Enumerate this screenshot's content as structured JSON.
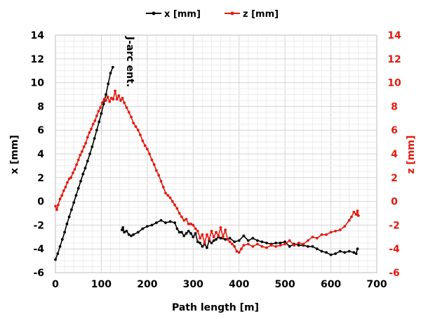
{
  "chart_data": {
    "type": "line",
    "xlabel": "Path length [m]",
    "ylabel": "x [mm]",
    "y2label": "z [mm]",
    "xlim": [
      0,
      700
    ],
    "ylim": [
      -6,
      14
    ],
    "y2lim": [
      -6,
      14
    ],
    "xticks": [
      0,
      100,
      200,
      300,
      400,
      500,
      600,
      700
    ],
    "yticks": [
      -6,
      -4,
      -2,
      0,
      2,
      4,
      6,
      8,
      10,
      12,
      14
    ],
    "y2ticks": [
      -6,
      -4,
      -2,
      0,
      2,
      4,
      6,
      8,
      10,
      12,
      14
    ],
    "grid": true,
    "legend_position": "top-center",
    "annotation": {
      "text": "J-arc ent.",
      "x": 130
    },
    "series": [
      {
        "name": "x [mm]",
        "color": "#000000",
        "axis": "left",
        "segments": [
          [
            [
              0,
              -4.9
            ],
            [
              5,
              -4.4
            ],
            [
              10,
              -3.8
            ],
            [
              15,
              -3.2
            ],
            [
              20,
              -2.6
            ],
            [
              25,
              -1.9
            ],
            [
              30,
              -1.3
            ],
            [
              35,
              -0.7
            ],
            [
              40,
              -0.1
            ],
            [
              45,
              0.5
            ],
            [
              50,
              1.1
            ],
            [
              55,
              1.7
            ],
            [
              60,
              2.3
            ],
            [
              65,
              2.8
            ],
            [
              70,
              3.4
            ],
            [
              75,
              4.0
            ],
            [
              80,
              4.6
            ],
            [
              85,
              5.3
            ],
            [
              90,
              6.0
            ],
            [
              95,
              6.7
            ],
            [
              100,
              7.4
            ],
            [
              105,
              8.2
            ],
            [
              110,
              9.0
            ],
            [
              115,
              9.9
            ],
            [
              120,
              10.8
            ],
            [
              125,
              11.3
            ]
          ],
          [
            [
              145,
              -2.4
            ],
            [
              147,
              -2.2
            ],
            [
              150,
              -2.6
            ],
            [
              155,
              -2.5
            ],
            [
              160,
              -2.8
            ],
            [
              165,
              -2.9
            ],
            [
              170,
              -2.8
            ],
            [
              180,
              -2.6
            ],
            [
              190,
              -2.3
            ],
            [
              200,
              -2.1
            ],
            [
              210,
              -2.0
            ],
            [
              220,
              -1.8
            ],
            [
              230,
              -1.6
            ],
            [
              240,
              -1.8
            ],
            [
              250,
              -1.7
            ],
            [
              260,
              -1.8
            ],
            [
              265,
              -2.3
            ],
            [
              270,
              -2.6
            ],
            [
              275,
              -2.6
            ],
            [
              280,
              -2.9
            ],
            [
              285,
              -2.7
            ],
            [
              290,
              -2.5
            ],
            [
              295,
              -2.7
            ],
            [
              300,
              -3.0
            ],
            [
              305,
              -2.7
            ],
            [
              310,
              -3.4
            ],
            [
              315,
              -3.5
            ],
            [
              320,
              -3.8
            ],
            [
              325,
              -3.6
            ],
            [
              330,
              -3.9
            ],
            [
              335,
              -3.3
            ],
            [
              340,
              -3.5
            ],
            [
              345,
              -3.3
            ],
            [
              350,
              -3.2
            ],
            [
              355,
              -3.0
            ],
            [
              360,
              -3.1
            ],
            [
              370,
              -3.2
            ],
            [
              380,
              -3.1
            ],
            [
              390,
              -3.4
            ],
            [
              400,
              -3.3
            ],
            [
              410,
              -2.9
            ],
            [
              420,
              -3.3
            ],
            [
              430,
              -3.1
            ],
            [
              440,
              -3.3
            ],
            [
              450,
              -3.4
            ],
            [
              460,
              -3.5
            ],
            [
              470,
              -3.6
            ],
            [
              480,
              -3.5
            ],
            [
              490,
              -3.5
            ],
            [
              500,
              -3.4
            ],
            [
              510,
              -3.8
            ],
            [
              520,
              -3.6
            ],
            [
              530,
              -3.7
            ],
            [
              540,
              -3.7
            ],
            [
              550,
              -3.8
            ],
            [
              560,
              -3.8
            ],
            [
              570,
              -4.0
            ],
            [
              580,
              -4.2
            ],
            [
              590,
              -4.3
            ],
            [
              600,
              -4.5
            ],
            [
              610,
              -4.4
            ],
            [
              620,
              -4.2
            ],
            [
              630,
              -4.3
            ],
            [
              640,
              -4.2
            ],
            [
              650,
              -4.3
            ],
            [
              655,
              -4.4
            ],
            [
              658,
              -4.0
            ]
          ]
        ]
      },
      {
        "name": "z [mm]",
        "color": "#e31a0f",
        "axis": "right",
        "segments": [
          [
            [
              0,
              -0.4
            ],
            [
              3,
              -0.7
            ],
            [
              6,
              -0.3
            ],
            [
              10,
              0.2
            ],
            [
              14,
              0.5
            ],
            [
              18,
              0.9
            ],
            [
              22,
              1.2
            ],
            [
              26,
              1.6
            ],
            [
              30,
              1.9
            ],
            [
              34,
              2.0
            ],
            [
              38,
              2.4
            ],
            [
              42,
              2.7
            ],
            [
              46,
              3.1
            ],
            [
              50,
              3.5
            ],
            [
              54,
              3.9
            ],
            [
              58,
              4.2
            ],
            [
              62,
              4.6
            ],
            [
              66,
              4.9
            ],
            [
              70,
              5.4
            ],
            [
              74,
              5.8
            ],
            [
              78,
              6.1
            ],
            [
              82,
              6.5
            ],
            [
              86,
              6.8
            ],
            [
              90,
              7.2
            ],
            [
              94,
              7.6
            ],
            [
              98,
              7.9
            ],
            [
              102,
              8.3
            ],
            [
              106,
              8.6
            ],
            [
              110,
              8.5
            ],
            [
              114,
              8.8
            ],
            [
              118,
              8.4
            ],
            [
              122,
              8.7
            ],
            [
              126,
              8.6
            ],
            [
              130,
              9.3
            ],
            [
              134,
              8.6
            ],
            [
              138,
              8.9
            ],
            [
              142,
              8.5
            ],
            [
              146,
              8.7
            ],
            [
              150,
              8.3
            ],
            [
              155,
              7.9
            ],
            [
              160,
              7.5
            ],
            [
              165,
              7.1
            ],
            [
              170,
              6.6
            ],
            [
              175,
              6.3
            ],
            [
              180,
              6.0
            ],
            [
              185,
              5.6
            ],
            [
              190,
              5.1
            ],
            [
              195,
              4.7
            ],
            [
              200,
              4.4
            ],
            [
              205,
              4.0
            ],
            [
              210,
              3.5
            ],
            [
              215,
              3.1
            ],
            [
              220,
              2.6
            ],
            [
              225,
              2.2
            ],
            [
              230,
              1.7
            ],
            [
              235,
              1.2
            ],
            [
              240,
              0.7
            ],
            [
              245,
              0.5
            ],
            [
              250,
              0.3
            ],
            [
              255,
              0.0
            ],
            [
              260,
              -0.3
            ],
            [
              265,
              -0.6
            ],
            [
              270,
              -1.0
            ],
            [
              275,
              -1.3
            ],
            [
              280,
              -1.6
            ],
            [
              285,
              -1.5
            ],
            [
              290,
              -1.9
            ],
            [
              295,
              -1.9
            ],
            [
              300,
              -2.0
            ],
            [
              305,
              -2.3
            ],
            [
              310,
              -2.5
            ],
            [
              315,
              -3.1
            ],
            [
              320,
              -2.8
            ],
            [
              325,
              -3.5
            ],
            [
              330,
              -2.8
            ],
            [
              335,
              -3.2
            ],
            [
              340,
              -2.5
            ],
            [
              345,
              -3.0
            ],
            [
              350,
              -2.6
            ],
            [
              355,
              -2.9
            ],
            [
              360,
              -2.2
            ],
            [
              365,
              -3.0
            ],
            [
              370,
              -2.4
            ],
            [
              375,
              -3.2
            ],
            [
              380,
              -3.4
            ],
            [
              385,
              -3.6
            ],
            [
              390,
              -3.8
            ],
            [
              395,
              -4.2
            ],
            [
              400,
              -4.3
            ],
            [
              405,
              -4.0
            ],
            [
              410,
              -3.7
            ],
            [
              420,
              -3.6
            ],
            [
              430,
              -3.8
            ],
            [
              440,
              -3.6
            ],
            [
              450,
              -3.8
            ],
            [
              460,
              -3.9
            ],
            [
              470,
              -3.7
            ],
            [
              480,
              -3.8
            ],
            [
              490,
              -3.7
            ],
            [
              500,
              -3.6
            ],
            [
              510,
              -3.3
            ],
            [
              520,
              -3.7
            ],
            [
              530,
              -3.5
            ],
            [
              540,
              -3.6
            ],
            [
              550,
              -3.3
            ],
            [
              560,
              -3.0
            ],
            [
              570,
              -3.1
            ],
            [
              580,
              -2.8
            ],
            [
              590,
              -2.8
            ],
            [
              600,
              -2.6
            ],
            [
              610,
              -2.5
            ],
            [
              620,
              -2.4
            ],
            [
              630,
              -2.1
            ],
            [
              640,
              -1.6
            ],
            [
              645,
              -1.3
            ],
            [
              650,
              -0.9
            ],
            [
              655,
              -1.1
            ],
            [
              658,
              -0.8
            ],
            [
              660,
              -1.2
            ]
          ]
        ]
      }
    ]
  }
}
